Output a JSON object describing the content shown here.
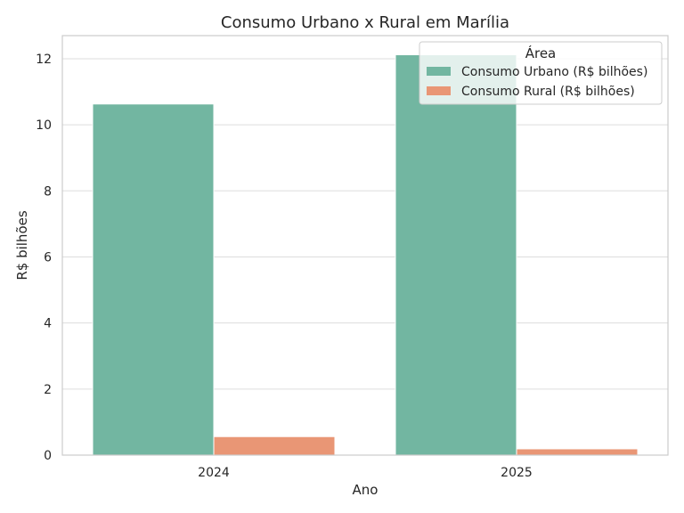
{
  "chart_data": {
    "type": "bar",
    "title": "Consumo Urbano x Rural em Marília",
    "xlabel": "Ano",
    "ylabel": "R$ bilhões",
    "categories": [
      "2024",
      "2025"
    ],
    "series": [
      {
        "name": "Consumo Urbano (R$ bilhões)",
        "values": [
          10.63,
          12.12
        ],
        "color": "#72b6a1"
      },
      {
        "name": "Consumo Rural (R$ bilhões)",
        "values": [
          0.56,
          0.19
        ],
        "color": "#e99675"
      }
    ],
    "ylim": [
      0,
      12.7
    ],
    "yticks": [
      0,
      2,
      4,
      6,
      8,
      10,
      12
    ],
    "grid": true,
    "legend": {
      "title": "Área",
      "placement": "top-right"
    }
  }
}
